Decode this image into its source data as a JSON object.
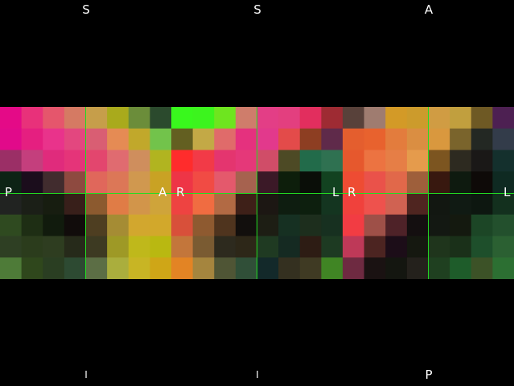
{
  "viewer": {
    "orientation_top": [
      "S",
      "S",
      "A"
    ],
    "orientation_bottom": [
      "I",
      "I",
      "P"
    ],
    "panel_sides": [
      {
        "left": "P",
        "right": "A"
      },
      {
        "left": "R",
        "right": "L"
      },
      {
        "left": "R",
        "right": "L"
      }
    ],
    "crosshair_color": "#22dd22",
    "panels": [
      {
        "name": "sagittal",
        "cols": 8,
        "rows": 8,
        "pixels": [
          [
            "#e40a87",
            "#e8317a",
            "#e5566c",
            "#d57a63",
            "#c69e4a",
            "#a9aa1c",
            "#6b8d3a",
            "#2b4a2d"
          ],
          [
            "#e10a8a",
            "#e51f80",
            "#e9338b",
            "#e3477f",
            "#d95e73",
            "#e58b54",
            "#c1a82b",
            "#72c34b"
          ],
          [
            "#9b2f66",
            "#c43f7d",
            "#e02b7c",
            "#e53479",
            "#e3466e",
            "#e06b70",
            "#cf8e5d",
            "#b1b420"
          ],
          [
            "#0d2315",
            "#1b0d1c",
            "#412c2e",
            "#8e4a40",
            "#e0675b",
            "#dc7757",
            "#d0984f",
            "#c9a224"
          ],
          [
            "#212321",
            "#1b1f17",
            "#171d10",
            "#381f1a",
            "#8c5a2f",
            "#e07c46",
            "#d2954a",
            "#cfa43a"
          ],
          [
            "#2f4a20",
            "#1e2e14",
            "#111b0d",
            "#110c0b",
            "#4e3e21",
            "#a58c34",
            "#d2a72e",
            "#d2a82b"
          ],
          [
            "#2e3f23",
            "#2b3c1c",
            "#2e3d20",
            "#262a1a",
            "#3d3a22",
            "#9e9926",
            "#bfb81b",
            "#b9b811"
          ],
          [
            "#4e7b38",
            "#2f471c",
            "#2a3e22",
            "#2d4a32",
            "#5c6e45",
            "#aaae3d",
            "#c8b524",
            "#cfa617"
          ]
        ]
      },
      {
        "name": "coronal",
        "cols": 8,
        "rows": 8,
        "pixels": [
          [
            "#39f81d",
            "#3cf41e",
            "#6ee51f",
            "#cf7d6b",
            "#e33e86",
            "#e33f7f",
            "#e22e5e",
            "#9e2b33"
          ],
          [
            "#635f21",
            "#c3a946",
            "#e06b6a",
            "#e5317e",
            "#e2398c",
            "#e34b4a",
            "#8d3e22",
            "#5f2a4a"
          ],
          [
            "#ff2c2c",
            "#f23a47",
            "#e4356f",
            "#e53879",
            "#d04d68",
            "#4d4a25",
            "#226b4a",
            "#2f7151"
          ],
          [
            "#ee3546",
            "#f14b44",
            "#e4596c",
            "#a6624f",
            "#3b1927",
            "#0d1e0b",
            "#0a0e08",
            "#124220"
          ],
          [
            "#ee4341",
            "#f06c41",
            "#b26a44",
            "#3e2018",
            "#1c1713",
            "#0e1d10",
            "#0d1f0e",
            "#143520"
          ],
          [
            "#d8503a",
            "#8e5a30",
            "#4f341e",
            "#120f0d",
            "#1d1e14",
            "#163022",
            "#1d2e1d",
            "#173020"
          ],
          [
            "#c3763b",
            "#7a5b32",
            "#2d2a1e",
            "#2d2718",
            "#1f3a22",
            "#152a22",
            "#2d1c14",
            "#1d3a22"
          ],
          [
            "#e38424",
            "#a5853e",
            "#4f5535",
            "#304f38",
            "#13292a",
            "#343020",
            "#3f3a23",
            "#408524"
          ]
        ]
      },
      {
        "name": "axial",
        "cols": 8,
        "rows": 8,
        "pixels": [
          [
            "#58413a",
            "#9f7c70",
            "#d39a27",
            "#cc9b2c",
            "#d09c43",
            "#c19f3e",
            "#6e5924",
            "#4d2052"
          ],
          [
            "#e45e2e",
            "#e8622e",
            "#e37c3d",
            "#da8e42",
            "#d9983e",
            "#7a642c",
            "#232823",
            "#333c4a"
          ],
          [
            "#e6582d",
            "#ec7341",
            "#e67e46",
            "#e59b4c",
            "#7c5520",
            "#2d2a20",
            "#1a1817",
            "#14302d"
          ],
          [
            "#ee4c33",
            "#ea524a",
            "#e1684a",
            "#9e5f3b",
            "#38180f",
            "#0e1a0f",
            "#0e0a08",
            "#0f2a22"
          ],
          [
            "#f0413c",
            "#ee524d",
            "#d06252",
            "#4f2520",
            "#121711",
            "#101a13",
            "#0d1710",
            "#13301e"
          ],
          [
            "#f23c43",
            "#9e5048",
            "#4e2228",
            "#140f10",
            "#131812",
            "#14190f",
            "#1c4626",
            "#23502d"
          ],
          [
            "#be3958",
            "#4c2421",
            "#1c0d18",
            "#151810",
            "#1f351c",
            "#1a3019",
            "#1e4f2b",
            "#2b6032"
          ],
          [
            "#6e2a41",
            "#1a1212",
            "#141610",
            "#24211c",
            "#1f4020",
            "#1e5c2a",
            "#3c5227",
            "#2c6f32"
          ]
        ]
      }
    ]
  }
}
